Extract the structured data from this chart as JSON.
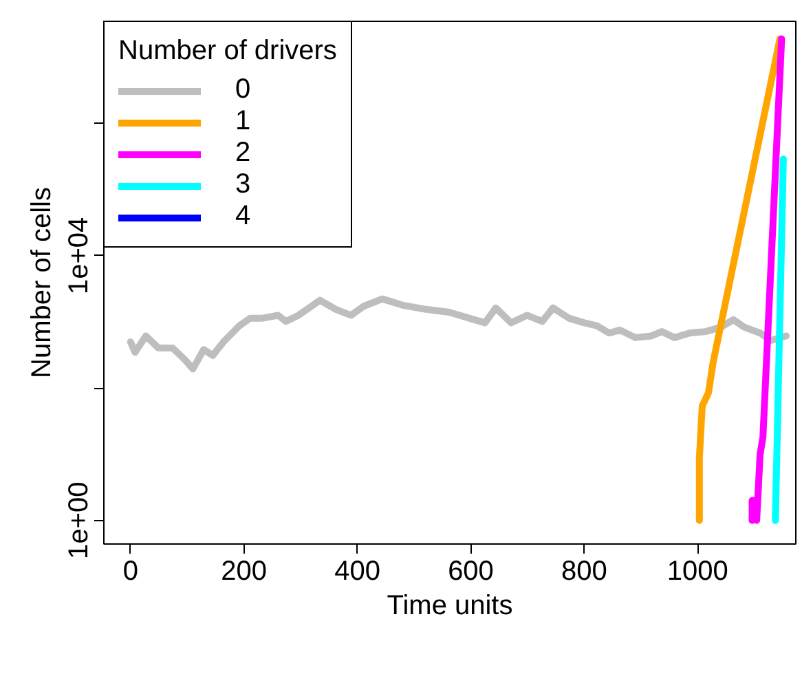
{
  "chart_data": {
    "type": "line",
    "xlabel": "Time units",
    "ylabel": "Number of cells",
    "legend_title": "Number of drivers",
    "legend": "top left",
    "grid": false,
    "log": "y",
    "line_style": "solid",
    "marker": "none",
    "xlim": [
      -47,
      1173
    ],
    "ylim": [
      0.44,
      35000000
    ],
    "xticks": [
      0,
      200,
      400,
      600,
      800,
      1000
    ],
    "yticks": [
      {
        "value": 1,
        "label": "1e+00"
      },
      {
        "value": 100,
        "label": null
      },
      {
        "value": 10000,
        "label": "1e+04"
      },
      {
        "value": 1000000,
        "label": null
      }
    ],
    "series": [
      {
        "name": "0",
        "color": "#bebebe",
        "x": [
          0,
          8,
          27,
          49,
          74,
          96,
          110,
          129,
          145,
          164,
          192,
          211,
          233,
          260,
          274,
          296,
          315,
          334,
          362,
          389,
          411,
          444,
          479,
          521,
          562,
          597,
          625,
          644,
          671,
          699,
          726,
          745,
          773,
          800,
          822,
          844,
          863,
          890,
          918,
          937,
          959,
          986,
          1014,
          1041,
          1063,
          1082,
          1110,
          1129,
          1156
        ],
        "values": [
          500,
          347,
          615,
          405,
          405,
          268,
          195,
          383,
          312,
          500,
          877,
          1140,
          1140,
          1260,
          1020,
          1260,
          1630,
          2130,
          1550,
          1260,
          1730,
          2230,
          1800,
          1550,
          1400,
          1140,
          970,
          1630,
          970,
          1260,
          1020,
          1630,
          1140,
          970,
          877,
          680,
          755,
          580,
          615,
          715,
          580,
          680,
          715,
          835,
          1080,
          835,
          680,
          525,
          615
        ]
      },
      {
        "name": "1",
        "color": "#ffa500",
        "x": [
          1003,
          1003,
          1008,
          1019,
          1027,
          1145
        ],
        "values": [
          1,
          8.8,
          54,
          85,
          240,
          19000000
        ]
      },
      {
        "name": "2",
        "color": "#ff00ff",
        "x": [
          1096,
          1096,
          1104,
          1104,
          1110,
          1115,
          1148
        ],
        "values": [
          1,
          2,
          2,
          1,
          10,
          18,
          19000000
        ]
      },
      {
        "name": "3",
        "color": "#00ffff",
        "x": [
          1137,
          1151
        ],
        "values": [
          1,
          290000
        ]
      },
      {
        "name": "4",
        "color": "#0000ff"
      }
    ]
  }
}
